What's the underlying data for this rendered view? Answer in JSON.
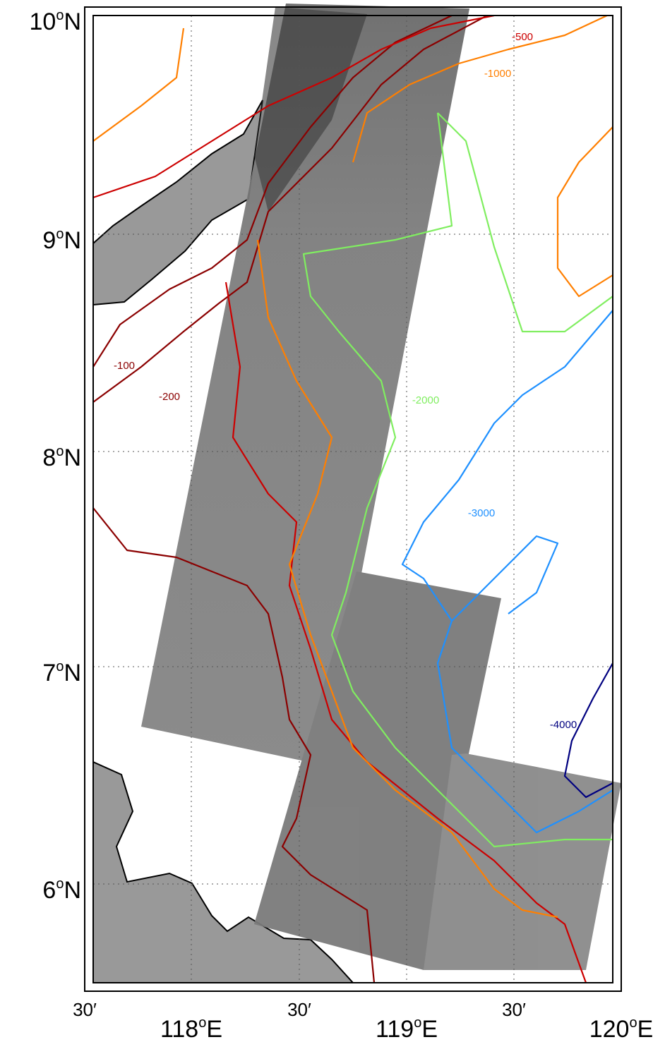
{
  "map": {
    "lat_labels": [
      {
        "number": "10",
        "degree": "o",
        "hemisphere": "N"
      },
      {
        "number": "9",
        "degree": "o",
        "hemisphere": "N"
      },
      {
        "number": "8",
        "degree": "o",
        "hemisphere": "N"
      },
      {
        "number": "7",
        "degree": "o",
        "hemisphere": "N"
      },
      {
        "number": "6",
        "degree": "o",
        "hemisphere": "N"
      }
    ],
    "lon_labels": [
      {
        "number": "30′"
      },
      {
        "number": "118",
        "degree": "o",
        "hemisphere": "E"
      },
      {
        "number": "30′"
      },
      {
        "number": "119",
        "degree": "o",
        "hemisphere": "E"
      },
      {
        "number": "30′"
      },
      {
        "number": "120",
        "degree": "o",
        "hemisphere": "E"
      }
    ],
    "contour_labels": [
      "-500",
      "-1000",
      "-100",
      "-200",
      "-2000",
      "-3000",
      "-4000"
    ]
  }
}
